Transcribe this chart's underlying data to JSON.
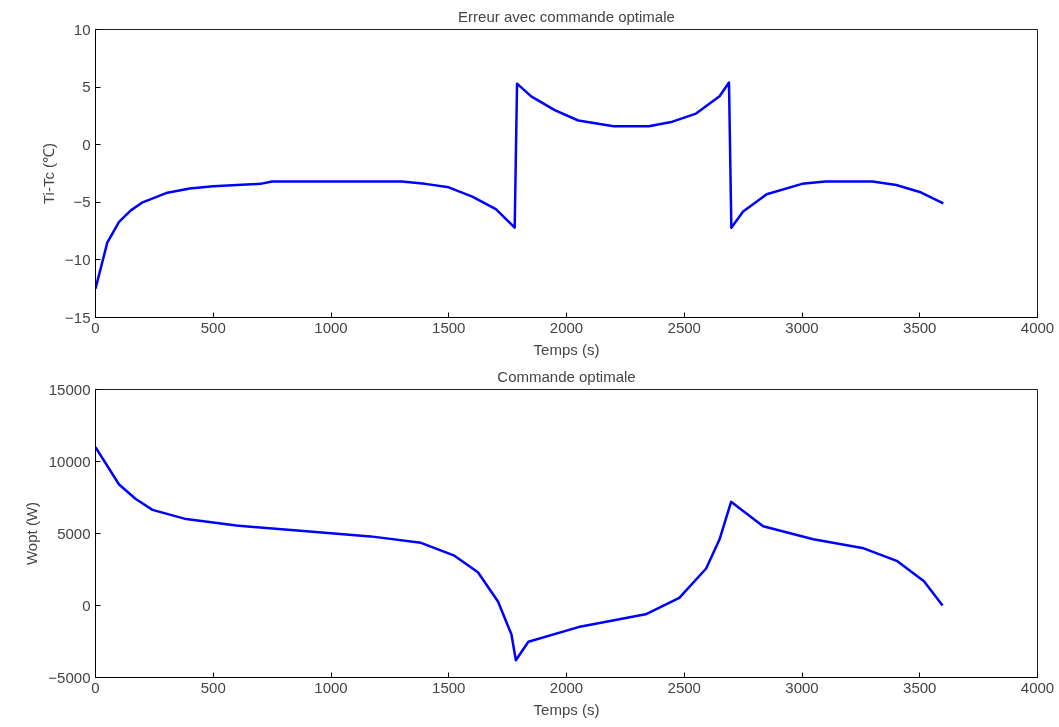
{
  "chart_data": [
    {
      "type": "line",
      "title": "Erreur avec commande optimale",
      "xlabel": "Temps (s)",
      "ylabel": "Ti-Tc (℃)",
      "xlim": [
        0,
        4000
      ],
      "xticks": [
        0,
        500,
        1000,
        1500,
        2000,
        2500,
        3000,
        3500,
        4000
      ],
      "ylim": [
        -15,
        10
      ],
      "yticks": [
        -15,
        -10,
        -5,
        0,
        5,
        10
      ],
      "grid": false,
      "series": [
        {
          "color": "#0000ff",
          "x": [
            0,
            50,
            100,
            150,
            200,
            300,
            400,
            500,
            700,
            750,
            1000,
            1300,
            1400,
            1500,
            1600,
            1700,
            1780,
            1790,
            1850,
            1950,
            2050,
            2200,
            2350,
            2450,
            2550,
            2650,
            2690,
            2700,
            2750,
            2850,
            3000,
            3100,
            3300,
            3400,
            3500,
            3600
          ],
          "values": [
            -12.5,
            -8.5,
            -6.7,
            -5.7,
            -5.0,
            -4.2,
            -3.8,
            -3.6,
            -3.4,
            -3.2,
            -3.2,
            -3.2,
            -3.4,
            -3.7,
            -4.5,
            -5.6,
            -7.2,
            5.3,
            4.2,
            3.0,
            2.1,
            1.6,
            1.6,
            2.0,
            2.7,
            4.2,
            5.4,
            -7.2,
            -5.8,
            -4.3,
            -3.4,
            -3.2,
            -3.2,
            -3.5,
            -4.1,
            -5.1
          ]
        }
      ]
    },
    {
      "type": "line",
      "title": "Commande optimale",
      "xlabel": "Temps (s)",
      "ylabel": "Wopt (W)",
      "xlim": [
        0,
        4000
      ],
      "xticks": [
        0,
        500,
        1000,
        1500,
        2000,
        2500,
        3000,
        3500,
        4000
      ],
      "ylim": [
        -5000,
        15000
      ],
      "yticks": [
        -5000,
        0,
        5000,
        10000,
        15000
      ],
      "grid": false,
      "series": [
        {
          "color": "#0000ff",
          "x": [
            0,
            100,
            171,
            242,
            385,
            598,
            883,
            1168,
            1382,
            1524,
            1624,
            1709,
            1766,
            1785,
            1838,
            2051,
            2336,
            2479,
            2593,
            2650,
            2699,
            2835,
            3048,
            3262,
            3405,
            3518,
            3597
          ],
          "values": [
            11000,
            8400,
            7400,
            6640,
            6000,
            5550,
            5170,
            4800,
            4350,
            3460,
            2310,
            280,
            -2000,
            -3800,
            -2520,
            -1500,
            -610,
            530,
            2570,
            4600,
            7200,
            5500,
            4600,
            3970,
            3080,
            1680,
            0
          ]
        }
      ]
    }
  ]
}
